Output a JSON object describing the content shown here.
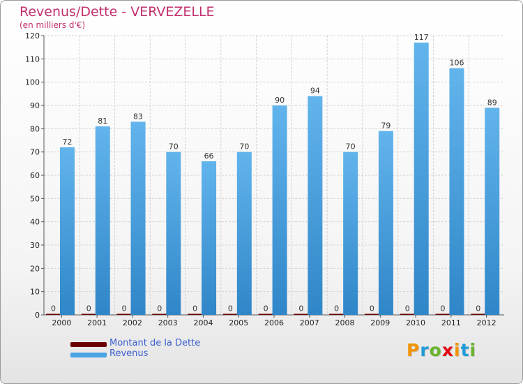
{
  "title": "Revenus/Dette - VERVEZELLE",
  "subtitle": "(en milliers d'€)",
  "logo": {
    "text": "Proxiti",
    "colors": [
      "#f29300",
      "#1f9bd7",
      "#69b32e",
      "#e30613",
      "#f29300",
      "#1f9bd7",
      "#69b32e"
    ]
  },
  "legend": [
    {
      "label": "Montant de la Dette",
      "color": "#6b0000"
    },
    {
      "label": "Revenus",
      "color": "#4aa3e3"
    }
  ],
  "chart_data": {
    "type": "bar",
    "title": "Revenus/Dette - VERVEZELLE",
    "subtitle": "(en milliers d'€)",
    "categories": [
      "2000",
      "2001",
      "2002",
      "2003",
      "2004",
      "2005",
      "2006",
      "2007",
      "2008",
      "2009",
      "2010",
      "2011",
      "2012"
    ],
    "series": [
      {
        "name": "Montant de la Dette",
        "color": "#6b0000",
        "values": [
          0,
          0,
          0,
          0,
          0,
          0,
          0,
          0,
          0,
          0,
          0,
          0,
          0
        ]
      },
      {
        "name": "Revenus",
        "color": "#4aa3e3",
        "values": [
          72,
          81,
          83,
          70,
          66,
          70,
          90,
          94,
          70,
          79,
          117,
          106,
          89
        ]
      }
    ],
    "ylim": [
      0,
      120
    ],
    "yticks": [
      0,
      10,
      20,
      30,
      40,
      50,
      60,
      70,
      80,
      90,
      100,
      110,
      120
    ],
    "grid": true,
    "legend_position": "bottom-left"
  }
}
